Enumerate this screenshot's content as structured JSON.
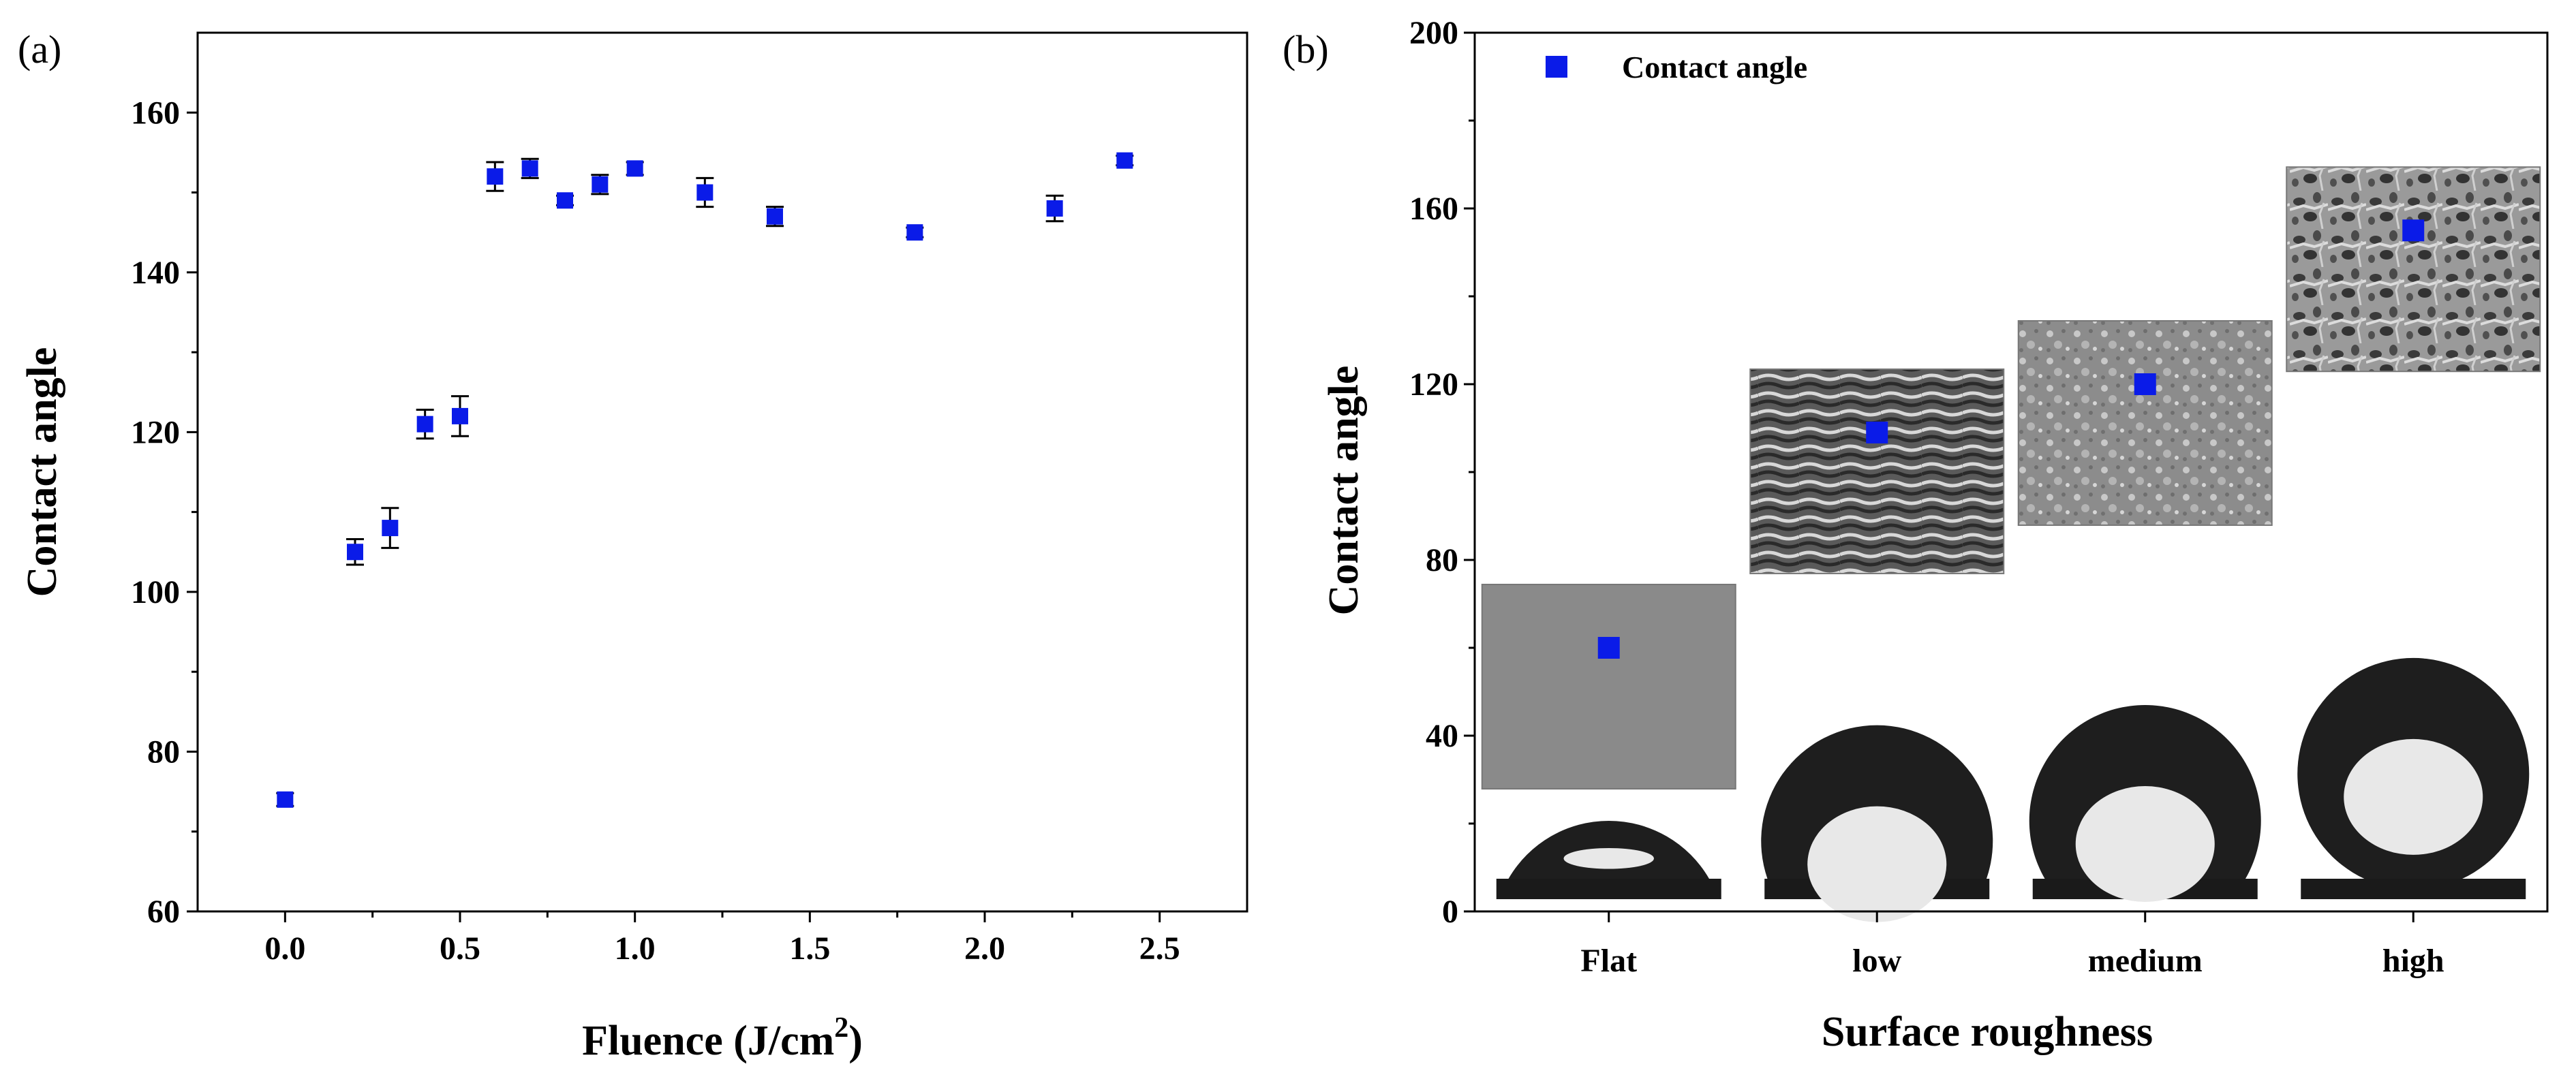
{
  "panels": [
    {
      "id": "a",
      "label": "(a)"
    },
    {
      "id": "b",
      "label": "(b)"
    }
  ],
  "colors": {
    "marker": "#0a1be8",
    "axis": "#000000",
    "sem_flat": "#8a8a8a",
    "sem_texture_dark": "#3b3b3b",
    "sem_texture_light": "#bcbcbc",
    "substrate": "#1a1a1a",
    "droplet": "#1e1e1e",
    "droplet_highlight": "#e8e8e8"
  },
  "chart_data": [
    {
      "type": "scatter",
      "panel": "a",
      "xlabel": "Fluence (J/cm",
      "xlabel_sup": "2",
      "xlabel_tail": ")",
      "ylabel": "Contact angle",
      "xlim": [
        -0.25,
        2.75
      ],
      "ylim": [
        60,
        170
      ],
      "xticks": [
        0.0,
        0.5,
        1.0,
        1.5,
        2.0,
        2.5
      ],
      "xtick_labels": [
        "0.0",
        "0.5",
        "1.0",
        "1.5",
        "2.0",
        "2.5"
      ],
      "yticks": [
        60,
        80,
        100,
        120,
        140,
        160
      ],
      "ytick_labels": [
        "60",
        "80",
        "100",
        "120",
        "140",
        "160"
      ],
      "points": [
        {
          "x": 0.0,
          "y": 74,
          "err": 0.8
        },
        {
          "x": 0.2,
          "y": 105,
          "err": 1.6
        },
        {
          "x": 0.3,
          "y": 108,
          "err": 2.5
        },
        {
          "x": 0.4,
          "y": 121,
          "err": 1.8
        },
        {
          "x": 0.5,
          "y": 122,
          "err": 2.5
        },
        {
          "x": 0.6,
          "y": 152,
          "err": 1.8
        },
        {
          "x": 0.7,
          "y": 153,
          "err": 1.2
        },
        {
          "x": 0.8,
          "y": 149,
          "err": 0.6
        },
        {
          "x": 0.9,
          "y": 151,
          "err": 1.2
        },
        {
          "x": 1.0,
          "y": 153,
          "err": 0.8
        },
        {
          "x": 1.2,
          "y": 150,
          "err": 1.8
        },
        {
          "x": 1.4,
          "y": 147,
          "err": 1.2
        },
        {
          "x": 1.8,
          "y": 145,
          "err": 0.6
        },
        {
          "x": 2.2,
          "y": 148,
          "err": 1.6
        },
        {
          "x": 2.4,
          "y": 154,
          "err": 0.6
        }
      ]
    },
    {
      "type": "scatter",
      "panel": "b",
      "xlabel": "Surface roughness",
      "ylabel": "Contact angle",
      "ylim": [
        0,
        200
      ],
      "yticks": [
        0,
        40,
        80,
        120,
        160,
        200
      ],
      "ytick_labels": [
        "0",
        "40",
        "80",
        "120",
        "160",
        "200"
      ],
      "categories": [
        "Flat",
        "low",
        "medium",
        "high"
      ],
      "legend": {
        "label": "Contact angle",
        "position": "top-left"
      },
      "points": [
        {
          "category": "Flat",
          "y": 60
        },
        {
          "category": "low",
          "y": 109
        },
        {
          "category": "medium",
          "y": 120
        },
        {
          "category": "high",
          "y": 155
        }
      ],
      "inset_images": [
        {
          "category": "Flat",
          "kind": "sem",
          "texture": "flat"
        },
        {
          "category": "low",
          "kind": "sem",
          "texture": "ripples"
        },
        {
          "category": "medium",
          "kind": "sem",
          "texture": "granular"
        },
        {
          "category": "high",
          "kind": "sem",
          "texture": "porous"
        }
      ],
      "droplets": [
        {
          "category": "Flat",
          "contact_angle_deg": 60
        },
        {
          "category": "low",
          "contact_angle_deg": 109
        },
        {
          "category": "medium",
          "contact_angle_deg": 120
        },
        {
          "category": "high",
          "contact_angle_deg": 155
        }
      ]
    }
  ]
}
